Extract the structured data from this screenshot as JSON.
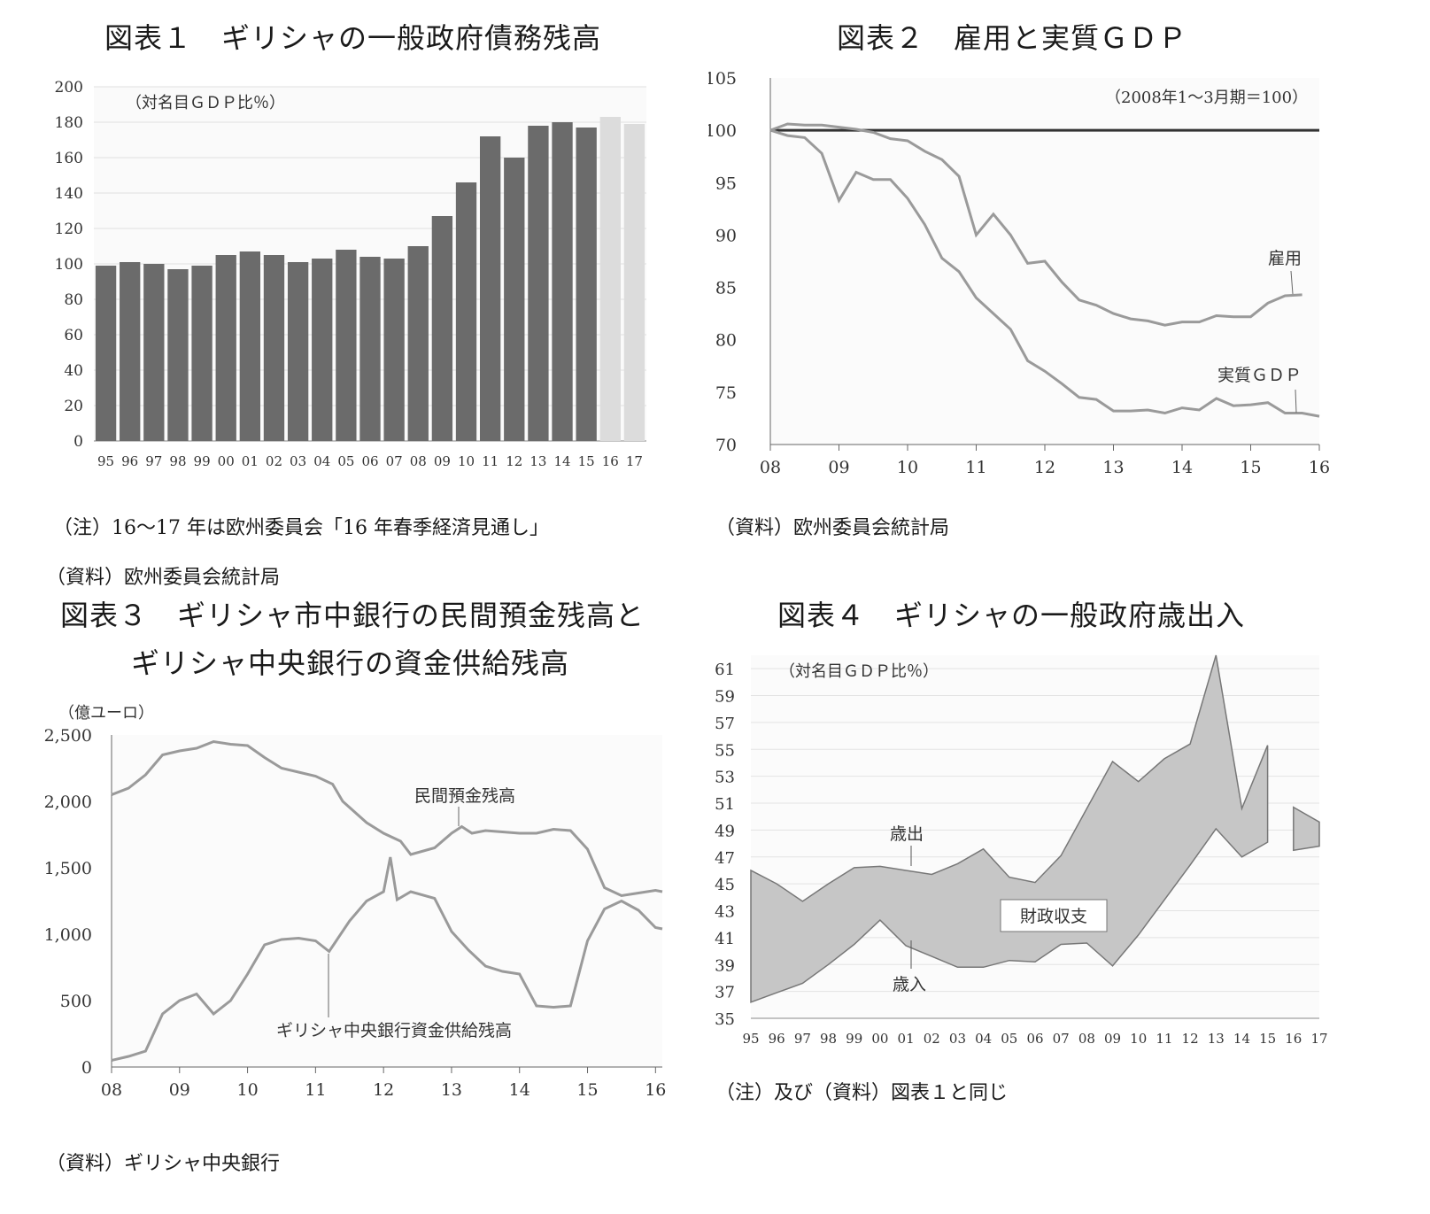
{
  "fig1": {
    "title": "図表１　ギリシャの一般政府債務残高",
    "note1": "（注）16〜17 年は欧州委員会「16 年春季経済見通し」",
    "note2": "（資料）欧州委員会統計局",
    "chart_data": {
      "type": "bar",
      "unit_label": "（対名目ＧＤＰ比％）",
      "categories": [
        "95",
        "96",
        "97",
        "98",
        "99",
        "00",
        "01",
        "02",
        "03",
        "04",
        "05",
        "06",
        "07",
        "08",
        "09",
        "10",
        "11",
        "12",
        "13",
        "14",
        "15",
        "16",
        "17"
      ],
      "values": [
        99,
        101,
        100,
        97,
        99,
        105,
        107,
        105,
        101,
        103,
        108,
        104,
        103,
        110,
        127,
        146,
        172,
        160,
        178,
        180,
        177,
        183,
        179
      ],
      "forecast_from_index": 21,
      "ylim": [
        0,
        200
      ],
      "yticks": [
        0,
        20,
        40,
        60,
        80,
        100,
        120,
        140,
        160,
        180,
        200
      ],
      "colors": {
        "actual": "#6b6b6b",
        "forecast": "#dcdcdc"
      }
    }
  },
  "fig2": {
    "title": "図表２　雇用と実質ＧＤＰ",
    "note1": "（資料）欧州委員会統計局",
    "chart_data": {
      "type": "line",
      "unit_label": "（2008年1〜3月期＝100）",
      "xlim": [
        2008,
        2016
      ],
      "xticks": [
        "08",
        "09",
        "10",
        "11",
        "12",
        "13",
        "14",
        "15",
        "16"
      ],
      "ylim": [
        70,
        105
      ],
      "yticks": [
        70,
        75,
        80,
        85,
        90,
        95,
        100,
        105
      ],
      "baseline": 100,
      "series": [
        {
          "name": "雇用",
          "points": [
            [
              2008,
              100
            ],
            [
              2008.25,
              100.6
            ],
            [
              2008.5,
              100.5
            ],
            [
              2008.75,
              100.5
            ],
            [
              2009,
              100.3
            ],
            [
              2009.25,
              100.1
            ],
            [
              2009.5,
              99.8
            ],
            [
              2009.75,
              99.2
            ],
            [
              2010,
              99
            ],
            [
              2010.25,
              98
            ],
            [
              2010.5,
              97.2
            ],
            [
              2010.75,
              95.6
            ],
            [
              2011,
              90
            ],
            [
              2011.25,
              92
            ],
            [
              2011.5,
              90
            ],
            [
              2011.75,
              87.3
            ],
            [
              2012,
              87.5
            ],
            [
              2012.25,
              85.5
            ],
            [
              2012.5,
              83.8
            ],
            [
              2012.75,
              83.3
            ],
            [
              2013,
              82.5
            ],
            [
              2013.25,
              82
            ],
            [
              2013.5,
              81.8
            ],
            [
              2013.75,
              81.4
            ],
            [
              2014,
              81.7
            ],
            [
              2014.25,
              81.7
            ],
            [
              2014.5,
              82.3
            ],
            [
              2014.75,
              82.2
            ],
            [
              2015,
              82.2
            ],
            [
              2015.25,
              83.5
            ],
            [
              2015.5,
              84.2
            ],
            [
              2015.75,
              84.3
            ]
          ]
        },
        {
          "name": "実質ＧＤＰ",
          "points": [
            [
              2008,
              100
            ],
            [
              2008.25,
              99.5
            ],
            [
              2008.5,
              99.3
            ],
            [
              2008.75,
              97.8
            ],
            [
              2009,
              93.3
            ],
            [
              2009.25,
              96
            ],
            [
              2009.5,
              95.3
            ],
            [
              2009.75,
              95.3
            ],
            [
              2010,
              93.5
            ],
            [
              2010.25,
              91
            ],
            [
              2010.5,
              87.8
            ],
            [
              2010.75,
              86.5
            ],
            [
              2011,
              84
            ],
            [
              2011.25,
              82.5
            ],
            [
              2011.5,
              81
            ],
            [
              2011.75,
              78
            ],
            [
              2012,
              77
            ],
            [
              2012.25,
              75.8
            ],
            [
              2012.5,
              74.5
            ],
            [
              2012.75,
              74.3
            ],
            [
              2013,
              73.2
            ],
            [
              2013.25,
              73.2
            ],
            [
              2013.5,
              73.3
            ],
            [
              2013.75,
              73
            ],
            [
              2014,
              73.5
            ],
            [
              2014.25,
              73.3
            ],
            [
              2014.5,
              74.4
            ],
            [
              2014.75,
              73.7
            ],
            [
              2015,
              73.8
            ],
            [
              2015.25,
              74
            ],
            [
              2015.5,
              73
            ],
            [
              2015.75,
              73
            ],
            [
              2016,
              72.7
            ]
          ]
        }
      ]
    }
  },
  "fig3": {
    "title_line1": "図表３　ギリシャ市中銀行の民間預金残高と",
    "title_line2": "ギリシャ中央銀行の資金供給残高",
    "note1": "（資料）ギリシャ中央銀行",
    "chart_data": {
      "type": "line",
      "unit_label": "（億ユーロ）",
      "xlim": [
        2008,
        2016.1
      ],
      "xticks": [
        "08",
        "09",
        "10",
        "11",
        "12",
        "13",
        "14",
        "15",
        "16"
      ],
      "ylim": [
        0,
        2500
      ],
      "yticks": [
        "0",
        "500",
        "1,000",
        "1,500",
        "2,000",
        "2,500"
      ],
      "ytick_values": [
        0,
        500,
        1000,
        1500,
        2000,
        2500
      ],
      "series": [
        {
          "name": "民間預金残高",
          "points": [
            [
              2008,
              2050
            ],
            [
              2008.25,
              2100
            ],
            [
              2008.5,
              2200
            ],
            [
              2008.75,
              2350
            ],
            [
              2009,
              2380
            ],
            [
              2009.25,
              2400
            ],
            [
              2009.5,
              2450
            ],
            [
              2009.75,
              2430
            ],
            [
              2010,
              2420
            ],
            [
              2010.25,
              2330
            ],
            [
              2010.5,
              2250
            ],
            [
              2010.75,
              2220
            ],
            [
              2011,
              2190
            ],
            [
              2011.25,
              2130
            ],
            [
              2011.4,
              2000
            ],
            [
              2011.75,
              1840
            ],
            [
              2012,
              1760
            ],
            [
              2012.25,
              1700
            ],
            [
              2012.4,
              1600
            ],
            [
              2012.75,
              1650
            ],
            [
              2013,
              1760
            ],
            [
              2013.15,
              1810
            ],
            [
              2013.3,
              1760
            ],
            [
              2013.5,
              1780
            ],
            [
              2013.75,
              1770
            ],
            [
              2014,
              1760
            ],
            [
              2014.25,
              1760
            ],
            [
              2014.5,
              1790
            ],
            [
              2014.75,
              1780
            ],
            [
              2015,
              1640
            ],
            [
              2015.25,
              1350
            ],
            [
              2015.5,
              1290
            ],
            [
              2015.75,
              1310
            ],
            [
              2016,
              1330
            ],
            [
              2016.1,
              1320
            ]
          ]
        },
        {
          "name": "ギリシャ中央銀行資金供給残高",
          "points": [
            [
              2008,
              50
            ],
            [
              2008.25,
              80
            ],
            [
              2008.5,
              120
            ],
            [
              2008.75,
              400
            ],
            [
              2009,
              500
            ],
            [
              2009.25,
              550
            ],
            [
              2009.5,
              400
            ],
            [
              2009.75,
              500
            ],
            [
              2010,
              700
            ],
            [
              2010.25,
              920
            ],
            [
              2010.5,
              960
            ],
            [
              2010.75,
              970
            ],
            [
              2011,
              950
            ],
            [
              2011.2,
              870
            ],
            [
              2011.5,
              1100
            ],
            [
              2011.75,
              1250
            ],
            [
              2012,
              1320
            ],
            [
              2012.1,
              1580
            ],
            [
              2012.2,
              1260
            ],
            [
              2012.4,
              1320
            ],
            [
              2012.75,
              1270
            ],
            [
              2013,
              1020
            ],
            [
              2013.25,
              880
            ],
            [
              2013.5,
              760
            ],
            [
              2013.75,
              720
            ],
            [
              2014,
              700
            ],
            [
              2014.25,
              460
            ],
            [
              2014.5,
              450
            ],
            [
              2014.75,
              460
            ],
            [
              2015,
              950
            ],
            [
              2015.25,
              1190
            ],
            [
              2015.5,
              1250
            ],
            [
              2015.75,
              1180
            ],
            [
              2016,
              1050
            ],
            [
              2016.1,
              1040
            ]
          ]
        }
      ],
      "annotations": [
        "民間預金残高",
        "ギリシャ中央銀行資金供給残高"
      ]
    }
  },
  "fig4": {
    "title": "図表４　ギリシャの一般政府歳出入",
    "note1": "（注）及び（資料）図表１と同じ",
    "chart_data": {
      "type": "area",
      "unit_label": "（対名目ＧＤＰ比％）",
      "categories": [
        "95",
        "96",
        "97",
        "98",
        "99",
        "00",
        "01",
        "02",
        "03",
        "04",
        "05",
        "06",
        "07",
        "08",
        "09",
        "10",
        "11",
        "12",
        "13",
        "14",
        "15",
        "16",
        "17"
      ],
      "ylim": [
        35,
        62
      ],
      "yticks": [
        35,
        37,
        39,
        41,
        43,
        45,
        47,
        49,
        51,
        53,
        55,
        57,
        59,
        61
      ],
      "series": [
        {
          "name": "歳出",
          "values": [
            46,
            45,
            43.7,
            45,
            46.2,
            46.3,
            46,
            45.7,
            46.5,
            47.6,
            45.5,
            45.1,
            47.1,
            50.6,
            54.1,
            52.6,
            54.3,
            55.4,
            62,
            50.6,
            55.3,
            50.7,
            49.6
          ]
        },
        {
          "name": "歳入",
          "values": [
            36.2,
            36.9,
            37.6,
            39,
            40.5,
            42.3,
            40.4,
            39.6,
            38.8,
            38.8,
            39.3,
            39.2,
            40.5,
            40.6,
            38.9,
            41.2,
            43.8,
            46.4,
            49.1,
            47,
            48.1,
            47.5,
            47.8
          ]
        }
      ],
      "break_after_index": 20,
      "annotations": [
        "歳出",
        "歳入",
        "財政収支"
      ],
      "fill_color": "#c6c6c6"
    }
  }
}
